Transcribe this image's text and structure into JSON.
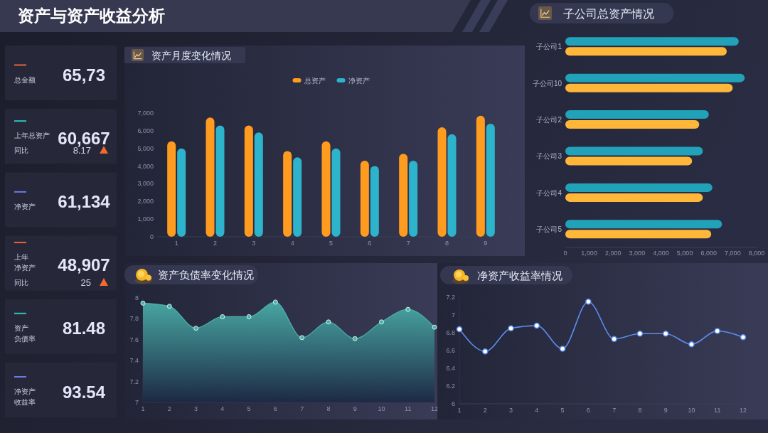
{
  "chart_data": [
    {
      "type": "other",
      "title": "资产与资产收益分析",
      "categories": [
        "总金额",
        "上年总资产",
        "净资产",
        "上年净资产",
        "资产负债率",
        "净资产收益率"
      ],
      "series": [
        {
          "values": [
            65.73,
            60667,
            61134,
            48907,
            81.48,
            93.54
          ],
          "value_labels": [
            "65,73",
            "60,667",
            "61,134",
            "48,907",
            "81.48",
            "93.54"
          ]
        },
        {
          "name": "同比",
          "values": [
            null,
            8.17,
            null,
            25,
            null,
            null
          ],
          "value_labels": [
            null,
            "8.17",
            null,
            "25",
            null,
            null
          ]
        }
      ]
    },
    {
      "type": "bar",
      "title": "资产月度变化情况",
      "categories": [
        "1",
        "2",
        "3",
        "4",
        "5",
        "6",
        "7",
        "8",
        "9"
      ],
      "series": [
        {
          "name": "总资产",
          "color": "#ff9b1e",
          "values": [
            5400,
            6750,
            6300,
            4850,
            5400,
            4300,
            4700,
            6200,
            6850
          ]
        },
        {
          "name": "净资产",
          "color": "#2db3cc",
          "values": [
            5000,
            6300,
            5900,
            4500,
            5000,
            4000,
            4300,
            5800,
            6400
          ]
        }
      ],
      "ylim": [
        0,
        7000
      ],
      "yticks": [
        0,
        {
          "value": 1000,
          "label": "1,000"
        },
        {
          "value": 2000,
          "label": "2,000"
        },
        {
          "value": 3000,
          "label": "3,000"
        },
        {
          "value": 4000,
          "label": "4,000"
        },
        {
          "value": 5000,
          "label": "5,000"
        },
        {
          "value": 6000,
          "label": "6,000"
        },
        {
          "value": 7000,
          "label": "7,000"
        }
      ],
      "legend": "top"
    },
    {
      "type": "bar",
      "orientation": "horizontal",
      "title": "子公司总资产情况",
      "categories": [
        "子公司1",
        "子公司10",
        "子公司2",
        "子公司3",
        "子公司4",
        "子公司5"
      ],
      "series": [
        {
          "color": "#21a2b9",
          "values": [
            7250,
            7500,
            6000,
            5750,
            6150,
            6550
          ]
        },
        {
          "color": "#ffb73a",
          "values": [
            6750,
            7000,
            5600,
            5300,
            5750,
            6100
          ]
        }
      ],
      "xlim": [
        0,
        8000
      ],
      "xticks": [
        0,
        {
          "value": 1000,
          "label": "1,000"
        },
        {
          "value": 2000,
          "label": "2,000"
        },
        {
          "value": 3000,
          "label": "3,000"
        },
        {
          "value": 4000,
          "label": "4,000"
        },
        {
          "value": 5000,
          "label": "5,000"
        },
        {
          "value": 6000,
          "label": "6,000"
        },
        {
          "value": 7000,
          "label": "7,000"
        },
        {
          "value": 8000,
          "label": "8,000"
        }
      ]
    },
    {
      "type": "area",
      "title": "资产负债率变化情况",
      "x": [
        1,
        2,
        3,
        4,
        5,
        6,
        7,
        8,
        9,
        10,
        11,
        12
      ],
      "series": [
        {
          "color": "#4bb1ab",
          "values": [
            7.95,
            7.92,
            7.71,
            7.82,
            7.82,
            7.96,
            7.62,
            7.77,
            7.61,
            7.77,
            7.89,
            7.72
          ]
        }
      ],
      "xlim": [
        1,
        12
      ],
      "xticks": [
        1,
        2,
        3,
        4,
        5,
        6,
        7,
        8,
        9,
        10,
        11,
        12
      ],
      "ylim": [
        7,
        8
      ],
      "yticks": [
        7,
        7.2,
        7.4,
        7.6,
        7.8,
        8
      ],
      "marker": "circle"
    },
    {
      "type": "line",
      "title": "净资产收益率情况",
      "x": [
        1,
        2,
        3,
        4,
        5,
        6,
        7,
        8,
        9,
        10,
        11,
        12
      ],
      "series": [
        {
          "color": "#5b8def",
          "values": [
            6.84,
            6.59,
            6.85,
            6.88,
            6.62,
            7.15,
            6.73,
            6.79,
            6.79,
            6.67,
            6.82,
            6.75
          ]
        }
      ],
      "xlim": [
        1,
        12
      ],
      "xticks": [
        1,
        2,
        3,
        4,
        5,
        6,
        7,
        8,
        9,
        10,
        11,
        12
      ],
      "ylim": [
        6,
        7.2
      ],
      "yticks": [
        6,
        6.2,
        6.4,
        6.6,
        6.8,
        7,
        7.2
      ],
      "marker": "circle"
    }
  ]
}
